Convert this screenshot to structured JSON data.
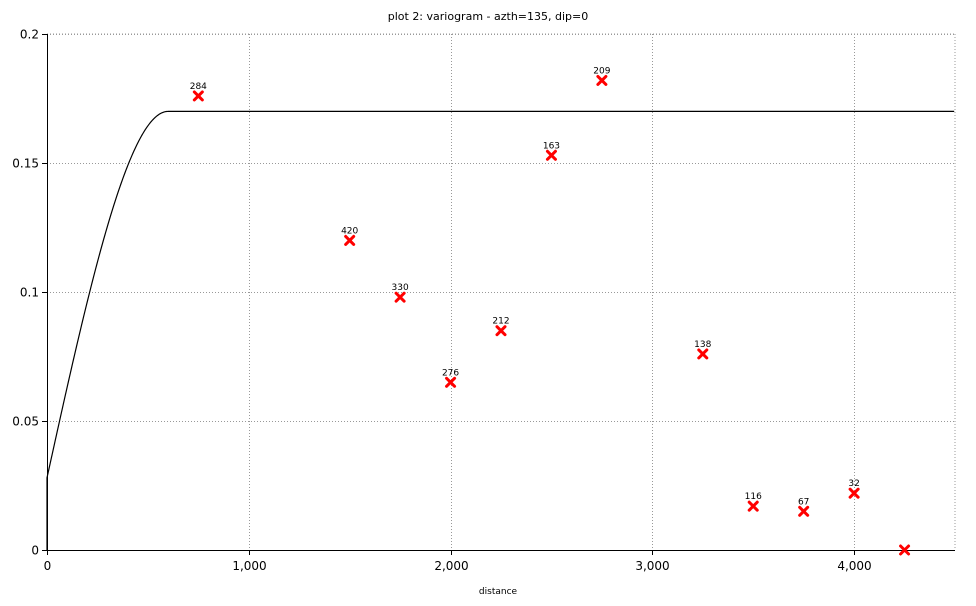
{
  "chart_data": {
    "type": "scatter",
    "title": "plot 2:  variogram - azth=135, dip=0",
    "xlabel": "distance",
    "ylabel": "",
    "xlim": [
      0,
      4500
    ],
    "ylim": [
      0,
      0.2
    ],
    "x_ticks": [
      0,
      1000,
      2000,
      3000,
      4000
    ],
    "x_tick_labels": [
      "0",
      "1,000",
      "2,000",
      "3,000",
      "4,000"
    ],
    "y_ticks": [
      0,
      0.05,
      0.1,
      0.15,
      0.2
    ],
    "y_tick_labels": [
      "0",
      "0.05",
      "0.1",
      "0.15",
      "0.2"
    ],
    "grid": true,
    "points": [
      {
        "x": 750,
        "y": 0.176,
        "label": "284"
      },
      {
        "x": 1500,
        "y": 0.12,
        "label": "420"
      },
      {
        "x": 1750,
        "y": 0.098,
        "label": "330"
      },
      {
        "x": 2000,
        "y": 0.065,
        "label": "276"
      },
      {
        "x": 2250,
        "y": 0.085,
        "label": "212"
      },
      {
        "x": 2500,
        "y": 0.153,
        "label": "163"
      },
      {
        "x": 2750,
        "y": 0.182,
        "label": "209"
      },
      {
        "x": 3250,
        "y": 0.076,
        "label": "138"
      },
      {
        "x": 3500,
        "y": 0.017,
        "label": "116"
      },
      {
        "x": 3750,
        "y": 0.015,
        "label": "67"
      },
      {
        "x": 4000,
        "y": 0.022,
        "label": "32"
      },
      {
        "x": 4250,
        "y": 0.0,
        "label": ""
      }
    ],
    "model": {
      "type": "spherical",
      "nugget": 0.028,
      "sill": 0.17,
      "range": 600,
      "colors": {
        "model": "#000000",
        "points": "#ff0000",
        "grid": "#999999"
      }
    }
  }
}
